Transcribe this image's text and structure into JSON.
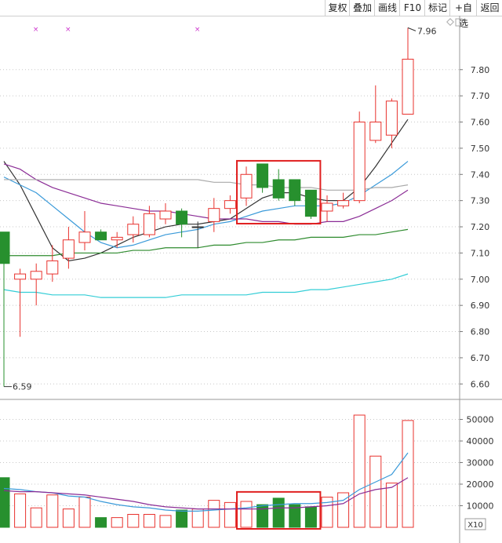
{
  "toolbar": {
    "buttons": [
      "复权",
      "叠加",
      "画线",
      "F10",
      "标记",
      "+自选",
      "返回"
    ]
  },
  "colors": {
    "up": "#e8322e",
    "down": "#27902e",
    "ma5": "#333333",
    "ma10": "#3a9ad9",
    "ma20": "#8b2d96",
    "ma60": "#2e8b2e",
    "ma120": "#33cdd6",
    "ma250": "#a9a9a9",
    "grid": "#c8c8c8",
    "highlight_box": "#e02020",
    "marker": "#cc33cc"
  },
  "labels": {
    "high_marker": "7.96",
    "low_marker": "6.59",
    "volume_unit": "X10"
  },
  "chart_data": [
    {
      "type": "candlestick",
      "title": "",
      "ylim": [
        6.55,
        8.0
      ],
      "y_ticks": [
        6.6,
        6.7,
        6.8,
        6.9,
        7.0,
        7.1,
        7.2,
        7.3,
        7.4,
        7.5,
        7.6,
        7.7,
        7.8
      ],
      "y_tick_labels": [
        "6.60",
        "6.70",
        "6.80",
        "6.90",
        "7.00",
        "7.10",
        "7.20",
        "7.30",
        "7.40",
        "7.50",
        "7.60",
        "7.70",
        "7.80"
      ],
      "candles": [
        {
          "open": 7.18,
          "high": 7.18,
          "low": 6.59,
          "close": 7.06
        },
        {
          "open": 7.0,
          "high": 7.04,
          "low": 6.78,
          "close": 7.02
        },
        {
          "open": 7.0,
          "high": 7.06,
          "low": 6.9,
          "close": 7.03
        },
        {
          "open": 7.02,
          "high": 7.13,
          "low": 6.99,
          "close": 7.07
        },
        {
          "open": 7.08,
          "high": 7.2,
          "low": 7.04,
          "close": 7.15
        },
        {
          "open": 7.14,
          "high": 7.26,
          "low": 7.11,
          "close": 7.18
        },
        {
          "open": 7.18,
          "high": 7.19,
          "low": 7.15,
          "close": 7.15
        },
        {
          "open": 7.15,
          "high": 7.18,
          "low": 7.12,
          "close": 7.16
        },
        {
          "open": 7.17,
          "high": 7.24,
          "low": 7.14,
          "close": 7.21
        },
        {
          "open": 7.17,
          "high": 7.28,
          "low": 7.16,
          "close": 7.25
        },
        {
          "open": 7.23,
          "high": 7.29,
          "low": 7.21,
          "close": 7.26
        },
        {
          "open": 7.26,
          "high": 7.27,
          "low": 7.16,
          "close": 7.21
        },
        {
          "open": 7.2,
          "high": 7.22,
          "low": 7.12,
          "close": 7.2
        },
        {
          "open": 7.22,
          "high": 7.31,
          "low": 7.18,
          "close": 7.27
        },
        {
          "open": 7.27,
          "high": 7.32,
          "low": 7.25,
          "close": 7.3
        },
        {
          "open": 7.31,
          "high": 7.43,
          "low": 7.28,
          "close": 7.4
        },
        {
          "open": 7.44,
          "high": 7.44,
          "low": 7.33,
          "close": 7.35
        },
        {
          "open": 7.38,
          "high": 7.42,
          "low": 7.3,
          "close": 7.31
        },
        {
          "open": 7.38,
          "high": 7.38,
          "low": 7.28,
          "close": 7.3
        },
        {
          "open": 7.34,
          "high": 7.34,
          "low": 7.23,
          "close": 7.24
        },
        {
          "open": 7.26,
          "high": 7.32,
          "low": 7.22,
          "close": 7.29
        },
        {
          "open": 7.28,
          "high": 7.33,
          "low": 7.27,
          "close": 7.3
        },
        {
          "open": 7.3,
          "high": 7.64,
          "low": 7.29,
          "close": 7.6
        },
        {
          "open": 7.53,
          "high": 7.74,
          "low": 7.52,
          "close": 7.6
        },
        {
          "open": 7.55,
          "high": 7.69,
          "low": 7.5,
          "close": 7.68
        },
        {
          "open": 7.63,
          "high": 7.96,
          "low": 7.63,
          "close": 7.84
        }
      ],
      "moving_averages": [
        {
          "key": "ma5",
          "values": [
            7.45,
            7.36,
            7.24,
            7.12,
            7.07,
            7.08,
            7.1,
            7.13,
            7.16,
            7.18,
            7.2,
            7.21,
            7.21,
            7.22,
            7.23,
            7.27,
            7.31,
            7.33,
            7.33,
            7.31,
            7.3,
            7.3,
            7.35,
            7.43,
            7.52,
            7.61
          ]
        },
        {
          "key": "ma10",
          "values": [
            7.39,
            7.36,
            7.33,
            7.28,
            7.23,
            7.18,
            7.14,
            7.12,
            7.13,
            7.15,
            7.17,
            7.18,
            7.19,
            7.21,
            7.22,
            7.24,
            7.26,
            7.27,
            7.28,
            7.28,
            7.28,
            7.29,
            7.32,
            7.36,
            7.4,
            7.45
          ]
        },
        {
          "key": "ma20",
          "values": [
            7.44,
            7.42,
            7.38,
            7.35,
            7.33,
            7.31,
            7.29,
            7.28,
            7.27,
            7.26,
            7.26,
            7.25,
            7.24,
            7.23,
            7.23,
            7.23,
            7.22,
            7.22,
            7.21,
            7.21,
            7.22,
            7.22,
            7.24,
            7.27,
            7.3,
            7.34
          ]
        },
        {
          "key": "ma60",
          "values": [
            7.09,
            7.09,
            7.09,
            7.09,
            7.1,
            7.1,
            7.1,
            7.1,
            7.11,
            7.11,
            7.12,
            7.12,
            7.12,
            7.13,
            7.13,
            7.14,
            7.14,
            7.15,
            7.15,
            7.16,
            7.16,
            7.16,
            7.17,
            7.17,
            7.18,
            7.19
          ]
        },
        {
          "key": "ma120",
          "values": [
            6.96,
            6.95,
            6.95,
            6.94,
            6.94,
            6.94,
            6.93,
            6.93,
            6.93,
            6.93,
            6.93,
            6.94,
            6.94,
            6.94,
            6.94,
            6.94,
            6.95,
            6.95,
            6.95,
            6.96,
            6.96,
            6.97,
            6.98,
            6.99,
            7.0,
            7.02
          ]
        },
        {
          "key": "ma250",
          "values": [
            7.38,
            7.38,
            7.38,
            7.38,
            7.38,
            7.38,
            7.38,
            7.38,
            7.38,
            7.38,
            7.38,
            7.38,
            7.38,
            7.37,
            7.37,
            7.36,
            7.36,
            7.35,
            7.35,
            7.35,
            7.34,
            7.34,
            7.34,
            7.35,
            7.35,
            7.36
          ]
        }
      ],
      "highlight_range": [
        15,
        19
      ],
      "grid": true
    },
    {
      "type": "bar",
      "title": "",
      "ylim": [
        0,
        56000
      ],
      "y_ticks": [
        10000,
        20000,
        30000,
        40000,
        50000
      ],
      "y_tick_labels": [
        "10000",
        "20000",
        "30000",
        "40000",
        "50000"
      ],
      "values": [
        23000,
        15500,
        9000,
        15000,
        8500,
        14000,
        4500,
        4500,
        6000,
        6000,
        5500,
        8000,
        8500,
        12500,
        11500,
        12000,
        10500,
        13500,
        10500,
        9500,
        14000,
        16000,
        52000,
        33000,
        20500,
        49500
      ],
      "moving_averages": [
        {
          "key": "ma10",
          "values": [
            18000,
            17500,
            16500,
            16000,
            14500,
            14000,
            12000,
            10500,
            9500,
            9000,
            8000,
            7500,
            7500,
            8000,
            8500,
            9000,
            10000,
            10500,
            11000,
            11000,
            11500,
            12500,
            17500,
            21000,
            24500,
            34500
          ]
        },
        {
          "key": "ma20",
          "values": [
            17000,
            16500,
            16500,
            16000,
            15500,
            15000,
            14000,
            13000,
            12000,
            10500,
            9500,
            9000,
            8500,
            8500,
            8500,
            8500,
            8500,
            9000,
            9000,
            9500,
            10000,
            11000,
            15500,
            17500,
            18500,
            23000
          ]
        }
      ],
      "highlight_range": [
        15,
        19
      ],
      "grid": true
    }
  ]
}
